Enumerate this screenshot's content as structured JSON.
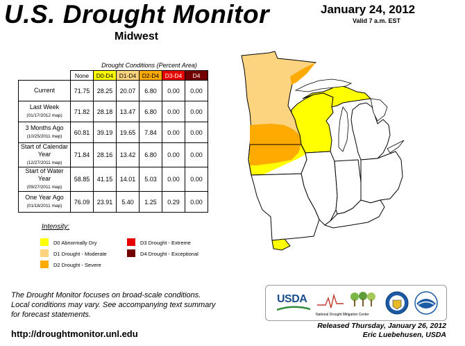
{
  "header": {
    "title": "U.S. Drought Monitor",
    "region": "Midwest",
    "date": "January 24, 2012",
    "valid": "Valid 7 a.m. EST"
  },
  "table": {
    "caption": "Drought Conditions (Percent Area)",
    "columns": [
      "None",
      "D0-D4",
      "D1-D4",
      "D2-D4",
      "D3-D4",
      "D4"
    ],
    "column_colors": [
      "#ffffff",
      "#ffff00",
      "#fcd37f",
      "#ffaa00",
      "#e60000",
      "#730000"
    ],
    "rows": [
      {
        "label": "Current",
        "sub": "",
        "values": [
          "71.75",
          "28.25",
          "20.07",
          "6.80",
          "0.00",
          "0.00"
        ]
      },
      {
        "label": "Last Week",
        "sub": "(01/17/2012 map)",
        "values": [
          "71.82",
          "28.18",
          "13.47",
          "6.80",
          "0.00",
          "0.00"
        ]
      },
      {
        "label": "3 Months Ago",
        "sub": "(10/25/2011 map)",
        "values": [
          "60.81",
          "39.19",
          "19.65",
          "7.84",
          "0.00",
          "0.00"
        ]
      },
      {
        "label": "Start of Calendar Year",
        "sub": "(12/27/2011 map)",
        "values": [
          "71.84",
          "28.16",
          "13.42",
          "6.80",
          "0.00",
          "0.00"
        ]
      },
      {
        "label": "Start of Water Year",
        "sub": "(09/27/2011 map)",
        "values": [
          "58.85",
          "41.15",
          "14.01",
          "5.03",
          "0.00",
          "0.00"
        ]
      },
      {
        "label": "One Year Ago",
        "sub": "(01/18/2011 map)",
        "values": [
          "76.09",
          "23.91",
          "5.40",
          "1.25",
          "0.29",
          "0.00"
        ]
      }
    ]
  },
  "legend": {
    "title": "Intensity:",
    "items": [
      {
        "label": "D0 Abnormally Dry",
        "color": "#ffff00"
      },
      {
        "label": "D1 Drought - Moderate",
        "color": "#fcd37f"
      },
      {
        "label": "D2 Drought - Severe",
        "color": "#ffaa00"
      },
      {
        "label": "D3 Drought - Extreme",
        "color": "#e60000"
      },
      {
        "label": "D4 Drought - Exceptional",
        "color": "#730000"
      }
    ]
  },
  "footnote": {
    "line1": "The Drought Monitor focuses on broad-scale conditions.",
    "line2": "Local conditions may vary. See accompanying text summary",
    "line3": "for forecast statements."
  },
  "url": "http://droughtmonitor.unl.edu",
  "logos": {
    "usda": "USDA",
    "ndmc": "National Drought Mitigation Center"
  },
  "released": {
    "line1": "Released Thursday, January 26, 2012",
    "line2": "Eric Luebehusen, USDA"
  }
}
